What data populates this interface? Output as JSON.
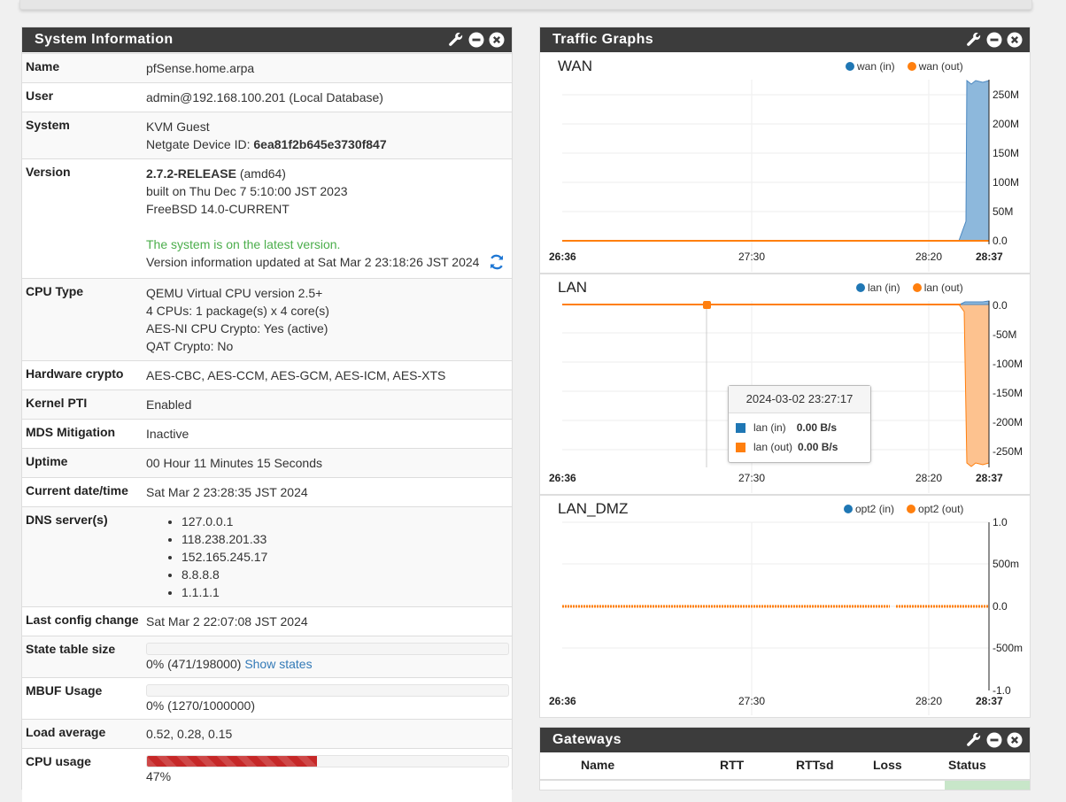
{
  "system_info": {
    "title": "System Information",
    "rows": {
      "name": {
        "label": "Name",
        "value": "pfSense.home.arpa"
      },
      "user": {
        "label": "User",
        "value": "admin@192.168.100.201 (Local Database)"
      },
      "system": {
        "label": "System",
        "line1": "KVM Guest",
        "device_id_prefix": "Netgate Device ID:",
        "device_id": "6ea81f2b645e3730f847"
      },
      "version": {
        "label": "Version",
        "release": "2.7.2-RELEASE",
        "arch": "(amd64)",
        "built": "built on Thu Dec 7 5:10:00 JST 2023",
        "os": "FreeBSD 14.0-CURRENT",
        "status": "The system is on the latest version.",
        "updated": "Version information updated at Sat Mar 2 23:18:26 JST 2024"
      },
      "cpu_type": {
        "label": "CPU Type",
        "l1": "QEMU Virtual CPU version 2.5+",
        "l2": "4 CPUs: 1 package(s) x 4 core(s)",
        "l3": "AES-NI CPU Crypto: Yes (active)",
        "l4": "QAT Crypto: No"
      },
      "hw_crypto": {
        "label": "Hardware crypto",
        "value": "AES-CBC, AES-CCM, AES-GCM, AES-ICM, AES-XTS"
      },
      "kernel_pti": {
        "label": "Kernel PTI",
        "value": "Enabled"
      },
      "mds": {
        "label": "MDS Mitigation",
        "value": "Inactive"
      },
      "uptime": {
        "label": "Uptime",
        "value": "00 Hour 11 Minutes 15 Seconds"
      },
      "datetime": {
        "label": "Current date/time",
        "value": "Sat Mar 2 23:28:35 JST 2024"
      },
      "dns": {
        "label": "DNS server(s)",
        "servers": [
          "127.0.0.1",
          "118.238.201.33",
          "152.165.245.17",
          "8.8.8.8",
          "1.1.1.1"
        ]
      },
      "last_config": {
        "label": "Last config change",
        "value": "Sat Mar 2 22:07:08 JST 2024"
      },
      "state_table": {
        "label": "State table size",
        "value": "0% (471/198000)",
        "link": "Show states",
        "percent": 0
      },
      "mbuf": {
        "label": "MBUF Usage",
        "value": "0% (1270/1000000)",
        "percent": 0
      },
      "load": {
        "label": "Load average",
        "value": "0.52, 0.28, 0.15"
      },
      "cpu_usage": {
        "label": "CPU usage",
        "value": "47%",
        "percent": 47
      }
    }
  },
  "traffic": {
    "title": "Traffic Graphs",
    "graphs": [
      {
        "name": "WAN",
        "legend_in": "wan (in)",
        "legend_out": "wan (out)",
        "x_ticks": [
          "26:36",
          "27:30",
          "28:20",
          "28:37"
        ],
        "y_ticks": [
          "250M",
          "200M",
          "150M",
          "100M",
          "50M",
          "0.0"
        ]
      },
      {
        "name": "LAN",
        "legend_in": "lan (in)",
        "legend_out": "lan (out)",
        "x_ticks": [
          "26:36",
          "27:30",
          "28:20",
          "28:37"
        ],
        "y_ticks": [
          "0.0",
          "-50M",
          "-100M",
          "-150M",
          "-200M",
          "-250M"
        ],
        "tooltip": {
          "time": "2024-03-02 23:27:17",
          "in_label": "lan (in)",
          "in_value": "0.00 B/s",
          "out_label": "lan (out)",
          "out_value": "0.00 B/s"
        }
      },
      {
        "name": "LAN_DMZ",
        "legend_in": "opt2 (in)",
        "legend_out": "opt2 (out)",
        "x_ticks": [
          "26:36",
          "27:30",
          "28:20",
          "28:37"
        ],
        "y_ticks": [
          "1.0",
          "500m",
          "0.0",
          "-500m",
          "-1.0"
        ]
      }
    ],
    "colors": {
      "in": "#1f77b4",
      "out": "#ff7f0e",
      "in_fill": "#8db8dc",
      "out_fill": "#fdc28f"
    }
  },
  "gateways": {
    "title": "Gateways",
    "columns": [
      "Name",
      "RTT",
      "RTTsd",
      "Loss",
      "Status"
    ]
  },
  "icons": [
    "wrench-icon",
    "minimize-icon",
    "close-icon",
    "refresh-icon"
  ]
}
